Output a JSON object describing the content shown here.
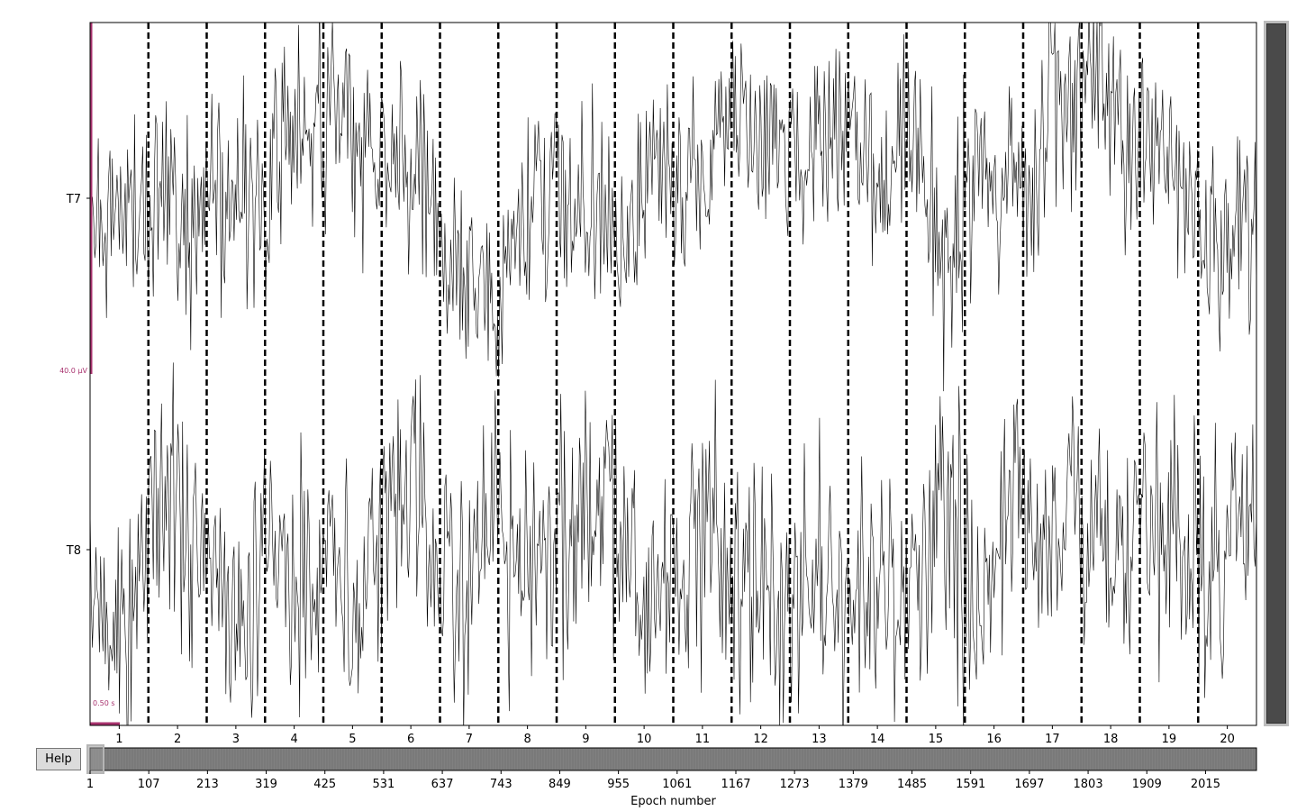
{
  "help_label": "Help",
  "colors": {
    "trace": "#000000",
    "scalebar": "#a8326e",
    "epoch_line": "#000000",
    "hscroll_fill": "#808080",
    "vscroll_thumb": "#4a4a4a"
  },
  "scalebar": {
    "amplitude_label": "40.0 µV",
    "time_label": "0.50 s"
  },
  "chart_data": {
    "type": "line",
    "title": "",
    "xlabel": "",
    "channels": [
      "T7",
      "T8"
    ],
    "x_ticks": [
      "1",
      "2",
      "3",
      "4",
      "5",
      "6",
      "7",
      "8",
      "9",
      "10",
      "11",
      "12",
      "13",
      "14",
      "15",
      "16",
      "17",
      "18",
      "19",
      "20"
    ],
    "n_epochs_visible": 20,
    "epoch_boundaries": [
      1.5,
      2.5,
      3.5,
      4.5,
      5.5,
      6.5,
      7.5,
      8.5,
      9.5,
      10.5,
      11.5,
      12.5,
      13.5,
      14.5,
      15.5,
      16.5,
      17.5,
      18.5,
      19.5
    ],
    "xlim": [
      0.5,
      20.5
    ]
  },
  "overview": {
    "xlabel": "Epoch number",
    "ticks": [
      "1",
      "107",
      "213",
      "319",
      "425",
      "531",
      "637",
      "743",
      "849",
      "955",
      "1061",
      "1167",
      "1273",
      "1379",
      "1485",
      "1591",
      "1697",
      "1803",
      "1909",
      "2015"
    ]
  }
}
